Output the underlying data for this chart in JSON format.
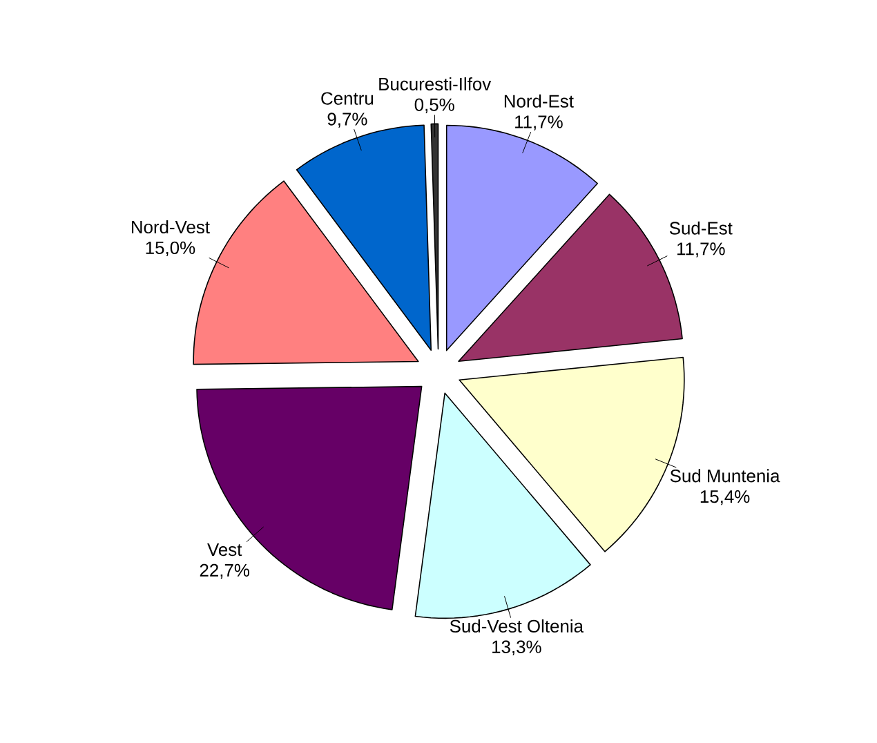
{
  "chart_data": {
    "type": "pie",
    "categories": [
      "Nord-Est",
      "Sud-Est",
      "Sud Muntenia",
      "Sud-Vest Oltenia",
      "Vest",
      "Nord-Vest",
      "Centru",
      "Bucuresti-Ilfov"
    ],
    "values": [
      11.7,
      11.7,
      15.4,
      13.3,
      22.7,
      15.0,
      9.7,
      0.5
    ],
    "value_labels": [
      "11,7%",
      "11,7%",
      "15,4%",
      "13,3%",
      "22,7%",
      "15,0%",
      "9,7%",
      "0,5%"
    ],
    "colors": [
      "#9999ff",
      "#993366",
      "#ffffcc",
      "#ccffff",
      "#660066",
      "#ff8080",
      "#0066cc",
      "#333333"
    ]
  }
}
